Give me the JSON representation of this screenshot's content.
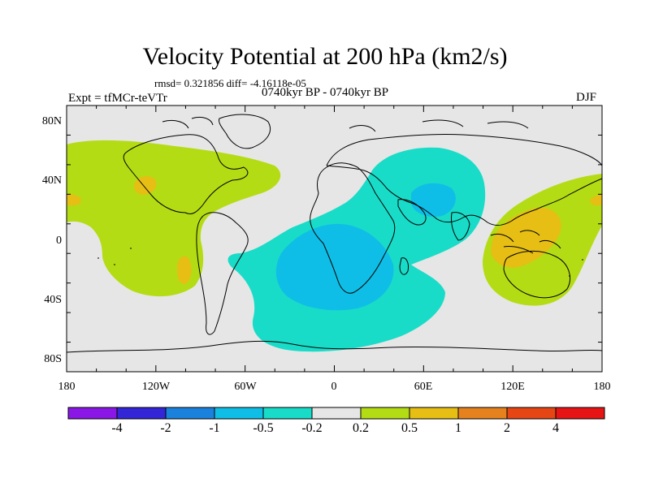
{
  "title": "Velocity Potential at 200 hPa (km2/s)",
  "stats": "rmsd= 0.321856 diff= -4.16118e-05",
  "experiment": "Expt = tfMCr-teVTr",
  "period": "0740kyr BP - 0740kyr BP",
  "season": "DJF",
  "map": {
    "lat_ticks": [
      "80N",
      "40N",
      "0",
      "40S",
      "80S"
    ],
    "lon_ticks": [
      "180",
      "120W",
      "60W",
      "0",
      "60E",
      "120E",
      "180"
    ]
  },
  "colorbar": {
    "labels": [
      "-4",
      "-2",
      "-1",
      "-0.5",
      "-0.2",
      "0.2",
      "0.5",
      "1",
      "2",
      "4"
    ],
    "colors": [
      "#8a17e6",
      "#3226d6",
      "#1a82dd",
      "#0fbee6",
      "#19dcc8",
      "#e6e6e6",
      "#b4dc14",
      "#e6be14",
      "#e6821e",
      "#e64614",
      "#e61414"
    ]
  },
  "colors": {
    "neutral": "#e6e6e6",
    "weak_negative": "#19dcc8",
    "negative": "#0fbee6",
    "weak_positive": "#b4dc14",
    "positive": "#e6be14",
    "coast": "#000000"
  }
}
